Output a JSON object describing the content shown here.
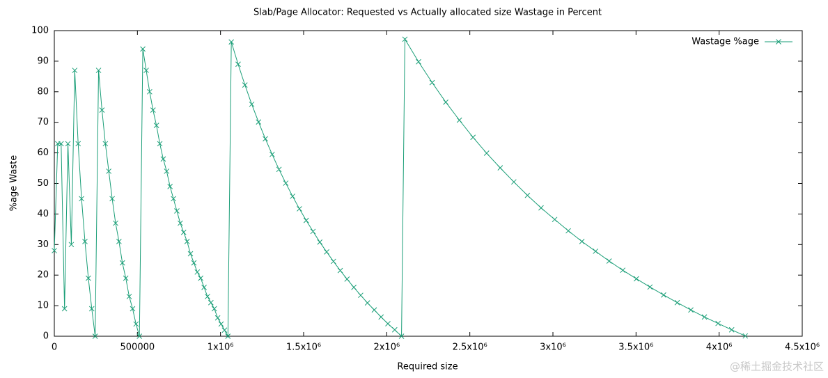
{
  "chart_data": {
    "type": "line",
    "title": "Slab/Page Allocator: Requested vs Actually allocated size Wastage in Percent",
    "x_label": "Required size",
    "y_label": "%age Waste",
    "watermark": "@稀土掘金技术社区",
    "legend_position": "top-right",
    "x": [
      0,
      20480,
      40960,
      61440,
      81920,
      102400,
      122880,
      143360,
      163840,
      184320,
      204800,
      225280,
      245760,
      266240,
      286720,
      307200,
      327680,
      348160,
      368640,
      389120,
      409600,
      430080,
      450560,
      471040,
      491520,
      512000,
      532480,
      552960,
      573440,
      593920,
      614400,
      634880,
      655360,
      675840,
      696320,
      716800,
      737280,
      757760,
      778240,
      798720,
      819200,
      839680,
      860160,
      880640,
      901120,
      921600,
      942080,
      962560,
      983040,
      1003520,
      1024000,
      1044480,
      1064960,
      1105920,
      1146880,
      1187840,
      1228800,
      1269760,
      1310720,
      1351680,
      1392640,
      1433600,
      1474560,
      1515520,
      1556480,
      1597440,
      1638400,
      1679360,
      1720320,
      1761280,
      1802240,
      1843200,
      1884160,
      1925120,
      1966080,
      2007040,
      2048000,
      2088960,
      2109440,
      2191360,
      2273280,
      2355200,
      2437120,
      2519040,
      2600960,
      2682880,
      2764800,
      2846720,
      2928640,
      3010560,
      3092480,
      3174400,
      3256320,
      3338240,
      3420160,
      3502080,
      3584000,
      3665920,
      3747840,
      3829760,
      3911680,
      3993600,
      4075520,
      4157440
    ],
    "series": [
      {
        "name": "Wastage %age",
        "color": "#1a9e77",
        "values": [
          28,
          63,
          63,
          9,
          63,
          30,
          87,
          63,
          45,
          31,
          19,
          9,
          0,
          87,
          74,
          63,
          54,
          45,
          37,
          31,
          24,
          19,
          13,
          9,
          4,
          0,
          94,
          87,
          80,
          74,
          69,
          63,
          58,
          54,
          49,
          45,
          41,
          37,
          34,
          31,
          27,
          24,
          21,
          19,
          16,
          13,
          11,
          9,
          6,
          4,
          2,
          0,
          96.3,
          89.0,
          82.2,
          75.9,
          70.1,
          64.6,
          59.5,
          54.6,
          50.1,
          45.8,
          41.7,
          37.9,
          34.3,
          30.8,
          27.6,
          24.5,
          21.5,
          18.7,
          16.0,
          13.4,
          10.9,
          8.6,
          6.3,
          4.1,
          2.1,
          0,
          97.2,
          89.8,
          83.0,
          76.6,
          70.7,
          65.1,
          59.9,
          55.1,
          50.5,
          46.1,
          42.0,
          38.2,
          34.5,
          31.0,
          27.8,
          24.6,
          21.6,
          18.8,
          16.1,
          13.5,
          11.0,
          8.6,
          6.3,
          4.2,
          2.1,
          0.1
        ]
      }
    ],
    "xlim": [
      0,
      4500000
    ],
    "xticks": [
      0,
      500000,
      {
        "value": 1000000,
        "label": "1x10⁶"
      },
      {
        "value": 1500000,
        "label": "1.5x10⁶"
      },
      {
        "value": 2000000,
        "label": "2x10⁶"
      },
      {
        "value": 2500000,
        "label": "2.5x10⁶"
      },
      {
        "value": 3000000,
        "label": "3x10⁶"
      },
      {
        "value": 3500000,
        "label": "3.5x10⁶"
      },
      {
        "value": 4000000,
        "label": "4x10⁶"
      },
      {
        "value": 4500000,
        "label": "4.5x10⁶"
      }
    ],
    "ylim": [
      0,
      100
    ],
    "yticks": [
      0,
      10,
      20,
      30,
      40,
      50,
      60,
      70,
      80,
      90,
      100
    ]
  }
}
